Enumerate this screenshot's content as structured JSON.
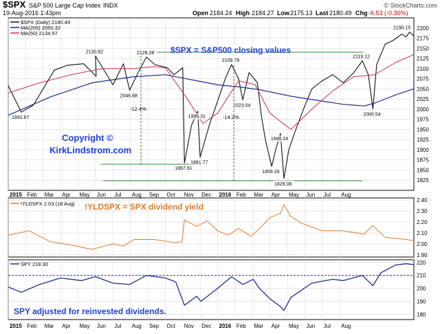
{
  "header": {
    "symbol": "$SPX",
    "name": "S&P 500 Large Cap Index",
    "exchange": "INDX",
    "date": "19-Aug-2016 1:43pm",
    "open_label": "Open",
    "open": "2184.24",
    "high_label": "High",
    "high": "2184.27",
    "low_label": "Low",
    "low": "2175.13",
    "last_label": "Last",
    "last": "2180.49",
    "chg_label": "Chg",
    "chg": "-6.53 (-0.30%)",
    "watermark": "© StockCharts.com"
  },
  "colors": {
    "price": "#111111",
    "ma200": "#1c2a8c",
    "ma50": "#cc2d4a",
    "yield": "#e07b2a",
    "spy": "#1c2a8c",
    "annotation_blue": "#1f3fe0",
    "annotation_orange": "#e07b2a",
    "guide_green": "#2e8b2e",
    "ref_dash": "#2a2aa0",
    "grid": "#dcdcdc"
  },
  "annotations": {
    "spx_caption": "$SPX = S&P500 closing values",
    "copyright_1": "Copyright ©",
    "copyright_2": "KirkLindstrom.com",
    "yield_caption": "!YLDSPX = SPX dividend yield",
    "spy_caption": "SPY adjusted for reinvested dividends.",
    "drop_1": "-12.4%",
    "drop_2": "-14.2%"
  },
  "chart_data": [
    {
      "type": "line",
      "title": "$SPX S&P 500 Large Cap Index INDX",
      "x_ticks": [
        "2015",
        "Feb",
        "Mar",
        "Apr",
        "May",
        "Jun",
        "Jul",
        "Aug",
        "Sep",
        "Oct",
        "Nov",
        "Dec",
        "2016",
        "Feb",
        "Mar",
        "Apr",
        "May",
        "Jun",
        "Jul",
        "Aug"
      ],
      "ylim": [
        1800,
        2225
      ],
      "y_ticks": [
        1825,
        1850,
        1875,
        1900,
        1925,
        1950,
        1975,
        2000,
        2025,
        2050,
        2075,
        2100,
        2125,
        2150,
        2175,
        2200
      ],
      "legend": [
        {
          "label": "$SPX (Daily) 2180.49",
          "color": "#111111"
        },
        {
          "label": "MA(200) 2050.32",
          "color": "#1c2a8c"
        },
        {
          "label": "MA(50) 2134.57",
          "color": "#cc2d4a"
        }
      ],
      "series": [
        {
          "name": "$SPX (Daily)",
          "points": [
            [
              0.0,
              2058
            ],
            [
              0.0625,
              1992.67
            ],
            [
              0.12,
              2010
            ],
            [
              0.22,
              2096
            ],
            [
              0.28,
              2108
            ],
            [
              0.36,
              2112
            ],
            [
              0.42,
              2081
            ],
            [
              0.4167,
              2130.82
            ],
            [
              0.5,
              2060
            ],
            [
              0.55,
              2112
            ],
            [
              0.58,
              2046.68
            ],
            [
              0.62,
              2090
            ],
            [
              0.66,
              2128.28
            ],
            [
              0.7,
              2110
            ],
            [
              0.76,
              2102
            ],
            [
              0.7917,
              2085
            ],
            [
              0.8333,
              2102
            ],
            [
              0.8417,
              1867.61
            ],
            [
              0.875,
              1960
            ],
            [
              0.905,
              1995.31
            ],
            [
              0.9167,
              1881.77
            ],
            [
              0.96,
              1960
            ],
            [
              1.0,
              2020
            ],
            [
              1.04,
              2080
            ],
            [
              1.0667,
              2109.79
            ],
            [
              1.1,
              2075
            ],
            [
              1.12,
              2023.04
            ],
            [
              1.15,
              2090
            ],
            [
              1.1667,
              2080
            ],
            [
              1.19,
              2065
            ],
            [
              1.21,
              1980
            ],
            [
              1.23,
              1920
            ],
            [
              1.2583,
              1859.33
            ],
            [
              1.28,
              1905
            ],
            [
              1.3,
              1940.24
            ],
            [
              1.3167,
              1829.08
            ],
            [
              1.34,
              1900
            ],
            [
              1.37,
              1945
            ],
            [
              1.41,
              2000
            ],
            [
              1.45,
              2050
            ],
            [
              1.5,
              2070
            ],
            [
              1.55,
              2085
            ],
            [
              1.6,
              2065
            ],
            [
              1.65,
              2090
            ],
            [
              1.6917,
              2119.12
            ],
            [
              1.72,
              2085
            ],
            [
              1.7417,
              2000.54
            ],
            [
              1.76,
              2110
            ],
            [
              1.8,
              2160
            ],
            [
              1.84,
              2170
            ],
            [
              1.88,
              2185
            ],
            [
              1.9,
              2178
            ],
            [
              1.9167,
              2190.15
            ],
            [
              1.9375,
              2180.49
            ]
          ]
        },
        {
          "name": "MA(200)",
          "points": [
            [
              0.0,
              1985
            ],
            [
              0.2,
              2030
            ],
            [
              0.4,
              2065
            ],
            [
              0.6,
              2080
            ],
            [
              0.75,
              2085
            ],
            [
              0.9,
              2070
            ],
            [
              1.0,
              2060
            ],
            [
              1.1,
              2055
            ],
            [
              1.2,
              2048
            ],
            [
              1.35,
              2032
            ],
            [
              1.5,
              2020
            ],
            [
              1.6,
              2012
            ],
            [
              1.7,
              2008
            ],
            [
              1.75,
              2015
            ],
            [
              1.85,
              2035
            ],
            [
              1.9375,
              2050.32
            ]
          ]
        },
        {
          "name": "MA(50)",
          "points": [
            [
              0.0,
              2040
            ],
            [
              0.15,
              2065
            ],
            [
              0.3,
              2085
            ],
            [
              0.45,
              2100
            ],
            [
              0.6,
              2100
            ],
            [
              0.7,
              2105
            ],
            [
              0.75,
              2102
            ],
            [
              0.85,
              2030
            ],
            [
              0.93,
              1965
            ],
            [
              1.0,
              1990
            ],
            [
              1.1,
              2070
            ],
            [
              1.18,
              2060
            ],
            [
              1.25,
              1990
            ],
            [
              1.35,
              1950
            ],
            [
              1.45,
              2000
            ],
            [
              1.55,
              2045
            ],
            [
              1.65,
              2080
            ],
            [
              1.75,
              2085
            ],
            [
              1.85,
              2115
            ],
            [
              1.9375,
              2134.57
            ]
          ]
        }
      ],
      "price_labels": [
        "2130.82",
        "2128.28",
        "2046.68",
        "1992.67",
        "1995.31",
        "1867.61",
        "1881.77",
        "2109.79",
        "2023.04",
        "1940.24",
        "1859.33",
        "1829.08",
        "2119.12",
        "2000.54",
        "2190.15"
      ]
    },
    {
      "type": "line",
      "title": "!YLDSPX",
      "legend": [
        {
          "label": "!YLDSPX 2.03 (18 Aug)",
          "color": "#e07b2a"
        }
      ],
      "ylim": [
        1.88,
        2.42
      ],
      "y_ticks": [
        1.9,
        2.0,
        2.1,
        2.2,
        2.3,
        2.4
      ],
      "series": [
        {
          "name": "!YLDSPX",
          "points": [
            [
              0.0,
              2.08
            ],
            [
              0.1,
              2.12
            ],
            [
              0.2,
              2.02
            ],
            [
              0.3,
              1.99
            ],
            [
              0.4,
              1.95
            ],
            [
              0.5,
              2.0
            ],
            [
              0.55,
              1.98
            ],
            [
              0.6,
              2.04
            ],
            [
              0.7,
              2.04
            ],
            [
              0.8,
              2.01
            ],
            [
              0.83,
              2.02
            ],
            [
              0.8417,
              2.22
            ],
            [
              0.9,
              2.16
            ],
            [
              0.95,
              2.21
            ],
            [
              1.0,
              2.12
            ],
            [
              1.05,
              2.08
            ],
            [
              1.1,
              2.14
            ],
            [
              1.16,
              2.07
            ],
            [
              1.2,
              2.14
            ],
            [
              1.25,
              2.24
            ],
            [
              1.3,
              2.28
            ],
            [
              1.3167,
              2.36
            ],
            [
              1.35,
              2.25
            ],
            [
              1.4,
              2.19
            ],
            [
              1.5,
              2.12
            ],
            [
              1.6,
              2.12
            ],
            [
              1.7,
              2.09
            ],
            [
              1.74,
              2.17
            ],
            [
              1.8,
              2.06
            ],
            [
              1.9,
              2.04
            ],
            [
              1.9375,
              2.03
            ]
          ]
        }
      ]
    },
    {
      "type": "line",
      "title": "SPY",
      "legend": [
        {
          "label": "SPY 218.30",
          "color": "#1c2a8c"
        }
      ],
      "ylim": [
        176,
        222
      ],
      "y_ticks": [
        180,
        190,
        200,
        210,
        220
      ],
      "reference_line": 210,
      "series": [
        {
          "name": "SPY",
          "points": [
            [
              0.0,
              201
            ],
            [
              0.0625,
              197
            ],
            [
              0.15,
              203
            ],
            [
              0.25,
              208
            ],
            [
              0.35,
              206
            ],
            [
              0.4167,
              209
            ],
            [
              0.5,
              204
            ],
            [
              0.58,
              203
            ],
            [
              0.66,
              210
            ],
            [
              0.75,
              208
            ],
            [
              0.8,
              205
            ],
            [
              0.8417,
              187
            ],
            [
              0.9,
              194
            ],
            [
              0.92,
              190
            ],
            [
              1.0,
              200
            ],
            [
              1.0667,
              209
            ],
            [
              1.12,
              203
            ],
            [
              1.17,
              207
            ],
            [
              1.2,
              200
            ],
            [
              1.25,
              192
            ],
            [
              1.3,
              186
            ],
            [
              1.3167,
              183
            ],
            [
              1.35,
              193
            ],
            [
              1.45,
              204
            ],
            [
              1.55,
              207
            ],
            [
              1.6,
              206
            ],
            [
              1.6917,
              210
            ],
            [
              1.7417,
              202
            ],
            [
              1.78,
              212
            ],
            [
              1.85,
              218
            ],
            [
              1.9,
              219
            ],
            [
              1.9375,
              218.3
            ]
          ]
        }
      ]
    }
  ]
}
